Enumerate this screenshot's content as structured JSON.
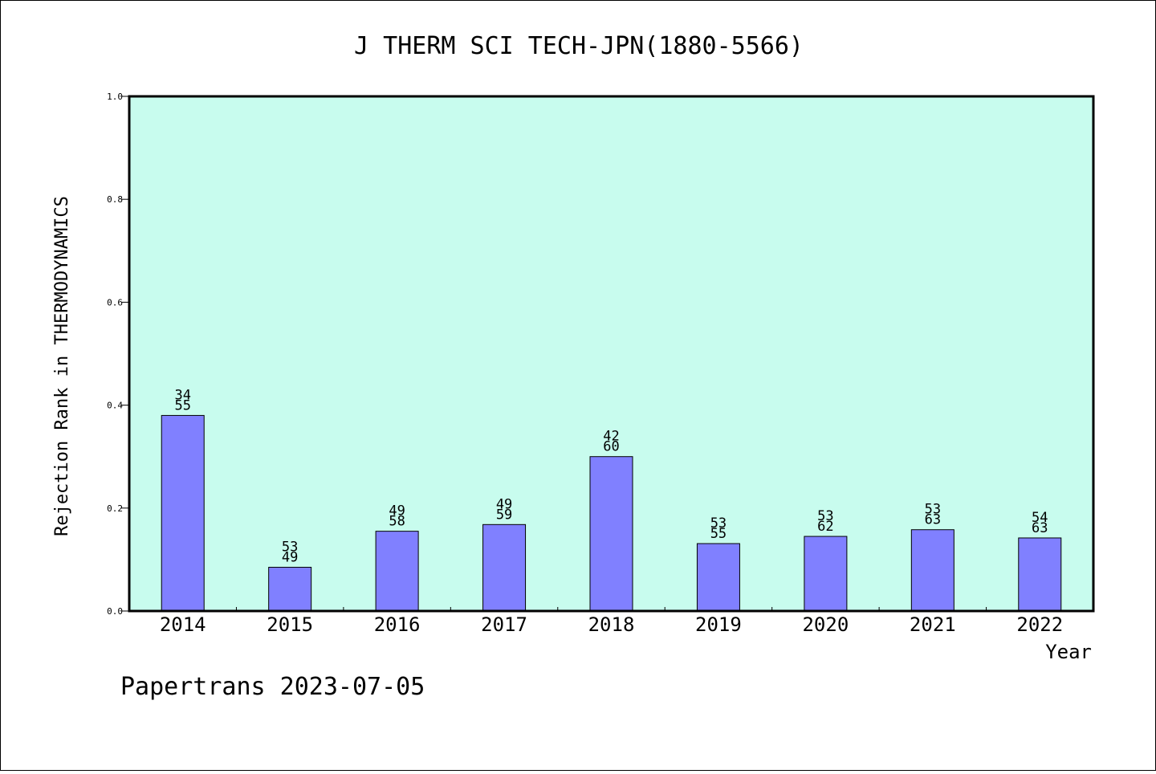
{
  "chart_data": {
    "type": "bar",
    "title": "J THERM SCI TECH-JPN(1880-5566)",
    "xlabel": "Year",
    "ylabel": "Rejection Rank in THERMODYNAMICS",
    "ylim": [
      0.0,
      1.0
    ],
    "yticks": [
      "0.0",
      "0.2",
      "0.4",
      "0.6",
      "0.8",
      "1.0"
    ],
    "categories": [
      "2014",
      "2015",
      "2016",
      "2017",
      "2018",
      "2019",
      "2020",
      "2021",
      "2022"
    ],
    "values": [
      0.38,
      0.085,
      0.155,
      0.168,
      0.3,
      0.131,
      0.145,
      0.158,
      0.142
    ],
    "labels_top": [
      "34",
      "53",
      "49",
      "49",
      "42",
      "53",
      "53",
      "53",
      "54"
    ],
    "labels_bottom": [
      "55",
      "49",
      "58",
      "59",
      "60",
      "55",
      "62",
      "63",
      "63"
    ],
    "grid": false,
    "legend": "none"
  },
  "footer": "Papertrans 2023-07-05",
  "colors": {
    "plot_background": "#c8fcee",
    "bar_fill": "#8080ff",
    "bar_stroke": "#000000",
    "axis": "#000000"
  }
}
